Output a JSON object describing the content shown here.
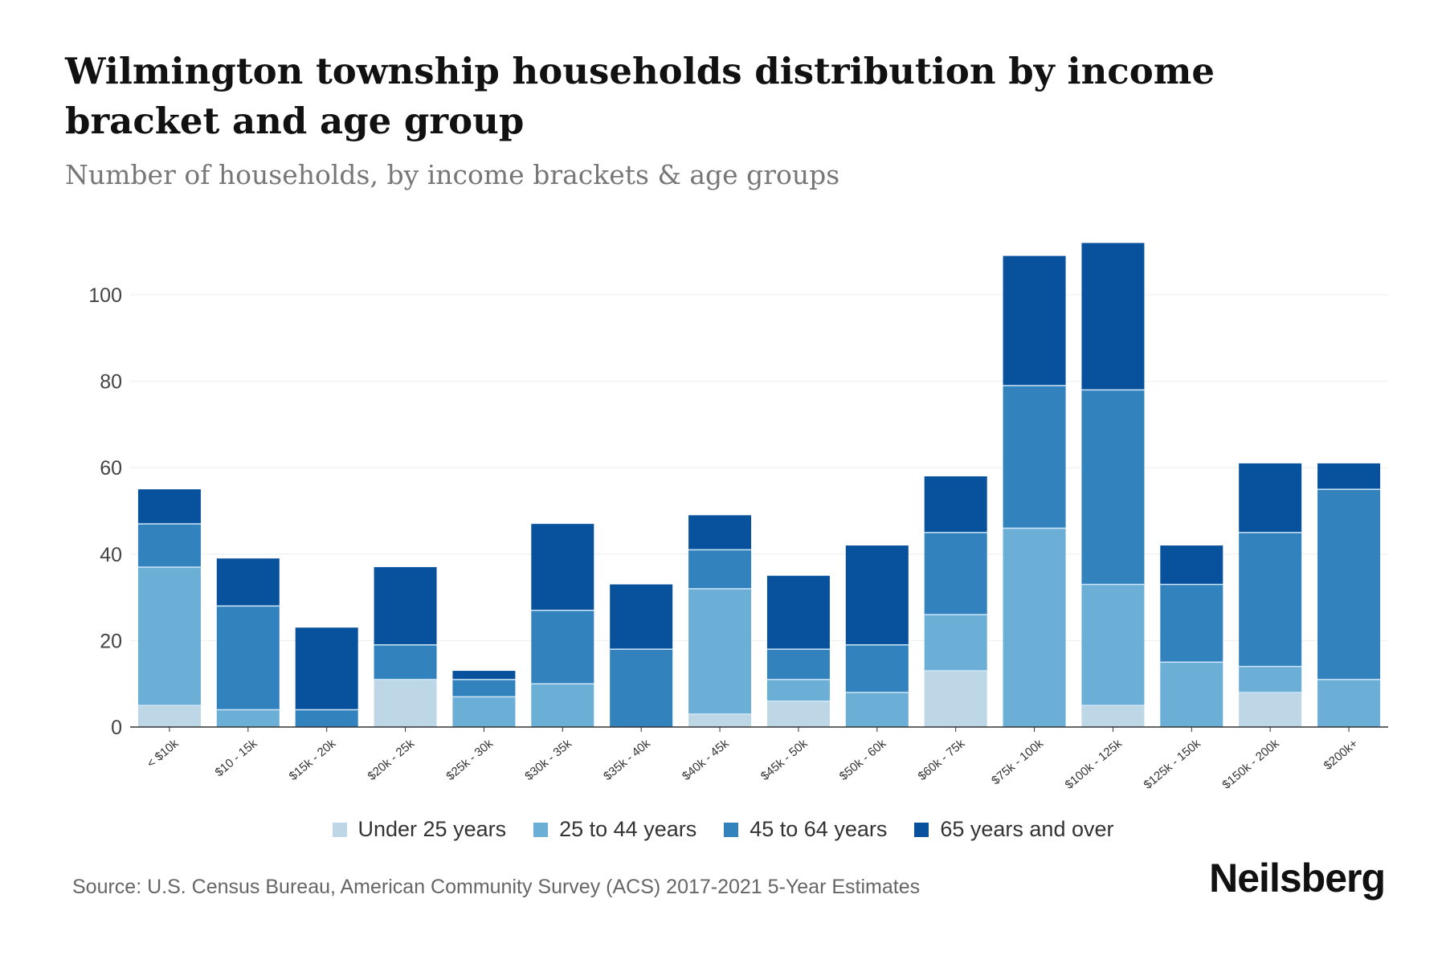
{
  "title": "Wilmington township households distribution by income bracket and age group",
  "subtitle": "Number of households, by income brackets & age groups",
  "source": "Source: U.S. Census Bureau, American Community Survey (ACS) 2017-2021 5-Year Estimates",
  "logo": "Neilsberg",
  "chart_data": {
    "type": "bar",
    "stacked": true,
    "title": "Wilmington township households distribution by income bracket and age group",
    "xlabel": "",
    "ylabel": "",
    "ylim": [
      0,
      112
    ],
    "yticks": [
      0,
      20,
      40,
      60,
      80,
      100
    ],
    "grid": true,
    "legend_position": "bottom",
    "categories": [
      "< $10k",
      "$10 - 15k",
      "$15k - 20k",
      "$20k - 25k",
      "$25k - 30k",
      "$30k - 35k",
      "$35k - 40k",
      "$40k - 45k",
      "$45k - 50k",
      "$50k - 60k",
      "$60k - 75k",
      "$75k - 100k",
      "$100k - 125k",
      "$125k - 150k",
      "$150k - 200k",
      "$200k+"
    ],
    "series": [
      {
        "name": "Under 25 years",
        "color": "#bdd7e7",
        "values": [
          5,
          0,
          0,
          11,
          0,
          0,
          0,
          3,
          6,
          0,
          13,
          0,
          5,
          0,
          8,
          0
        ]
      },
      {
        "name": "25 to 44 years",
        "color": "#6baed6",
        "values": [
          32,
          4,
          0,
          0,
          7,
          10,
          0,
          29,
          5,
          8,
          13,
          46,
          28,
          15,
          6,
          11
        ]
      },
      {
        "name": "45 to 64 years",
        "color": "#3182bd",
        "values": [
          10,
          24,
          4,
          8,
          4,
          17,
          18,
          9,
          7,
          11,
          19,
          33,
          45,
          18,
          31,
          44
        ]
      },
      {
        "name": "65 years and over",
        "color": "#08519c",
        "values": [
          8,
          11,
          19,
          18,
          2,
          20,
          15,
          8,
          17,
          23,
          13,
          30,
          34,
          9,
          16,
          6
        ]
      }
    ]
  }
}
